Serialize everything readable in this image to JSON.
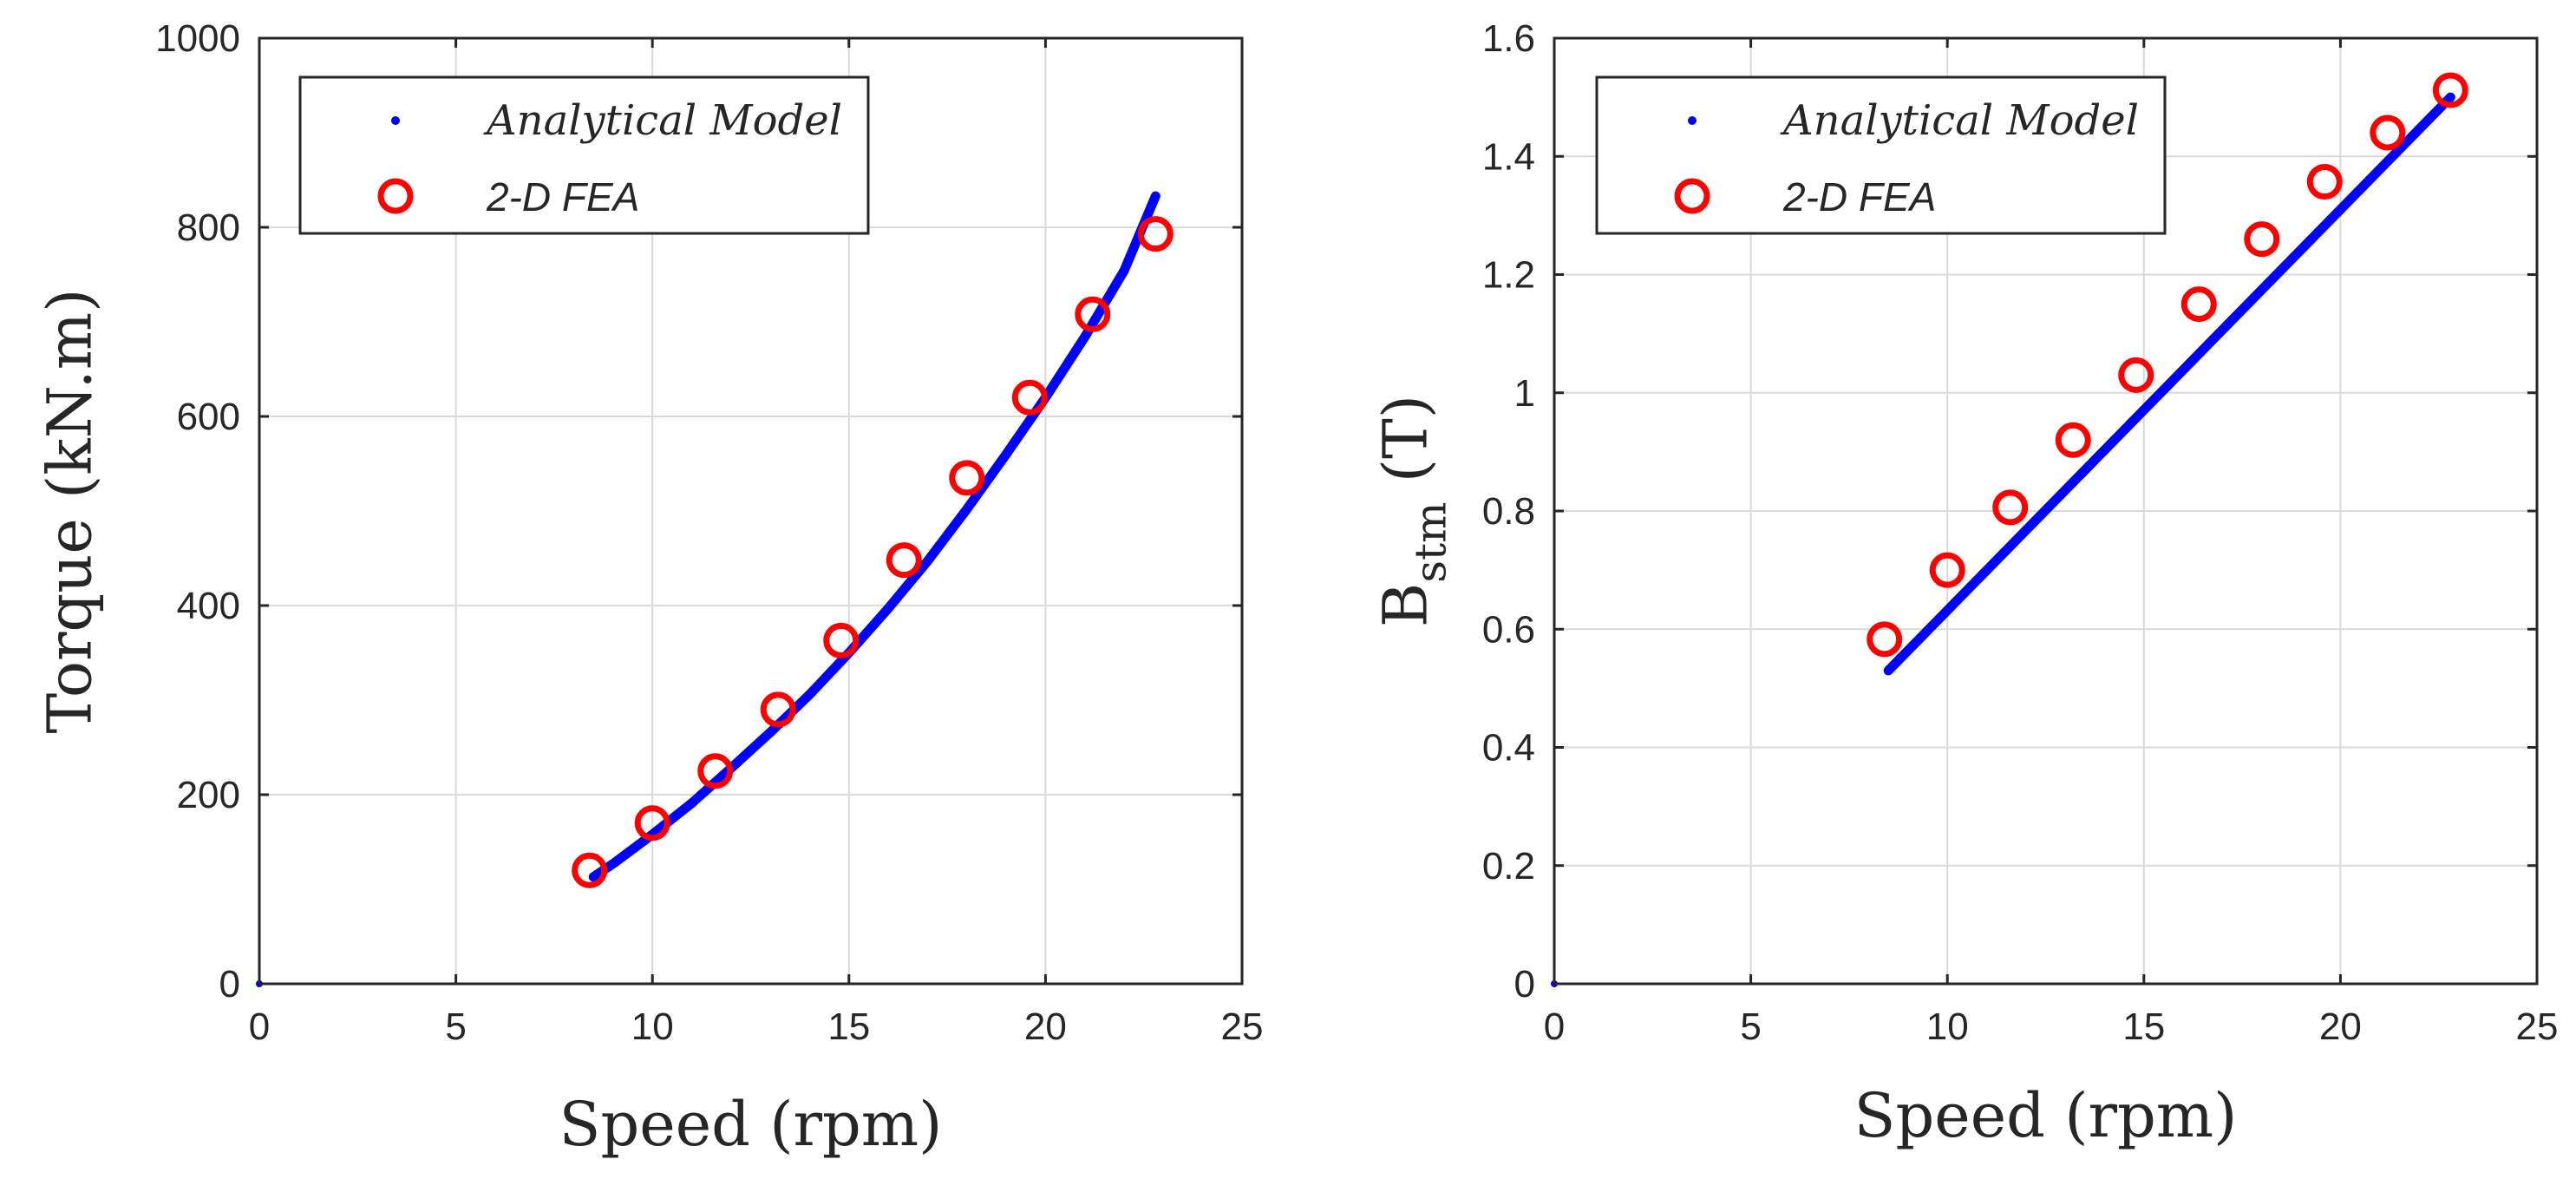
{
  "figure": {
    "colors": {
      "analytical": "#0000ff",
      "fea": "#ff0000",
      "axis": "#262626",
      "grid": "#d9d9d9"
    }
  },
  "chart_data": [
    {
      "type": "scatter",
      "xlabel": "Speed (rpm)",
      "ylabel": "Torque (kN.m)",
      "ylabel_main": "Torque (kN.m)",
      "ylabel_sub": "",
      "ylabel_tail": "",
      "xlim": [
        0,
        25
      ],
      "ylim": [
        0,
        1000
      ],
      "xticks": [
        0,
        5,
        10,
        15,
        20,
        25
      ],
      "yticks": [
        0,
        200,
        400,
        600,
        800,
        1000
      ],
      "grid": true,
      "legend_position": "top-left",
      "legend": [
        "Analytical Model",
        "2-D FEA"
      ],
      "series": [
        {
          "name": "Analytical Model",
          "marker": "dot",
          "x": [
            0,
            8.5,
            9,
            10,
            11,
            12,
            13,
            14,
            15,
            16,
            17,
            18,
            19,
            20,
            21,
            22,
            22.8
          ],
          "y": [
            0,
            113,
            127,
            158,
            191,
            228,
            266,
            306,
            350,
            397,
            447,
            502,
            560,
            620,
            684,
            754,
            833
          ]
        },
        {
          "name": "2-D FEA",
          "marker": "circle",
          "x": [
            8.4,
            10.0,
            11.6,
            13.2,
            14.8,
            16.4,
            18.0,
            19.6,
            21.2,
            22.8
          ],
          "y": [
            120,
            170,
            225,
            290,
            363,
            448,
            535,
            620,
            708,
            793
          ]
        }
      ]
    },
    {
      "type": "scatter",
      "xlabel": "Speed (rpm)",
      "ylabel": "B stm (T)",
      "ylabel_main": "B",
      "ylabel_sub": "stm",
      "ylabel_tail": " (T)",
      "xlim": [
        0,
        25
      ],
      "ylim": [
        0,
        1.6
      ],
      "xticks": [
        0,
        5,
        10,
        15,
        20,
        25
      ],
      "yticks": [
        0,
        0.2,
        0.4,
        0.6,
        0.8,
        1,
        1.2,
        1.4,
        1.6
      ],
      "grid": true,
      "legend_position": "top-left",
      "legend": [
        "Analytical Model",
        "2-D FEA"
      ],
      "series": [
        {
          "name": "Analytical Model",
          "marker": "dot",
          "x": [
            0,
            8.5,
            22.8
          ],
          "y": [
            0,
            0.53,
            1.5
          ]
        },
        {
          "name": "2-D FEA",
          "marker": "circle",
          "x": [
            8.4,
            10.0,
            11.6,
            13.2,
            14.8,
            16.4,
            18.0,
            19.6,
            21.2,
            22.8
          ],
          "y": [
            0.583,
            0.7,
            0.806,
            0.92,
            1.03,
            1.15,
            1.26,
            1.357,
            1.44,
            1.512
          ]
        }
      ]
    }
  ]
}
